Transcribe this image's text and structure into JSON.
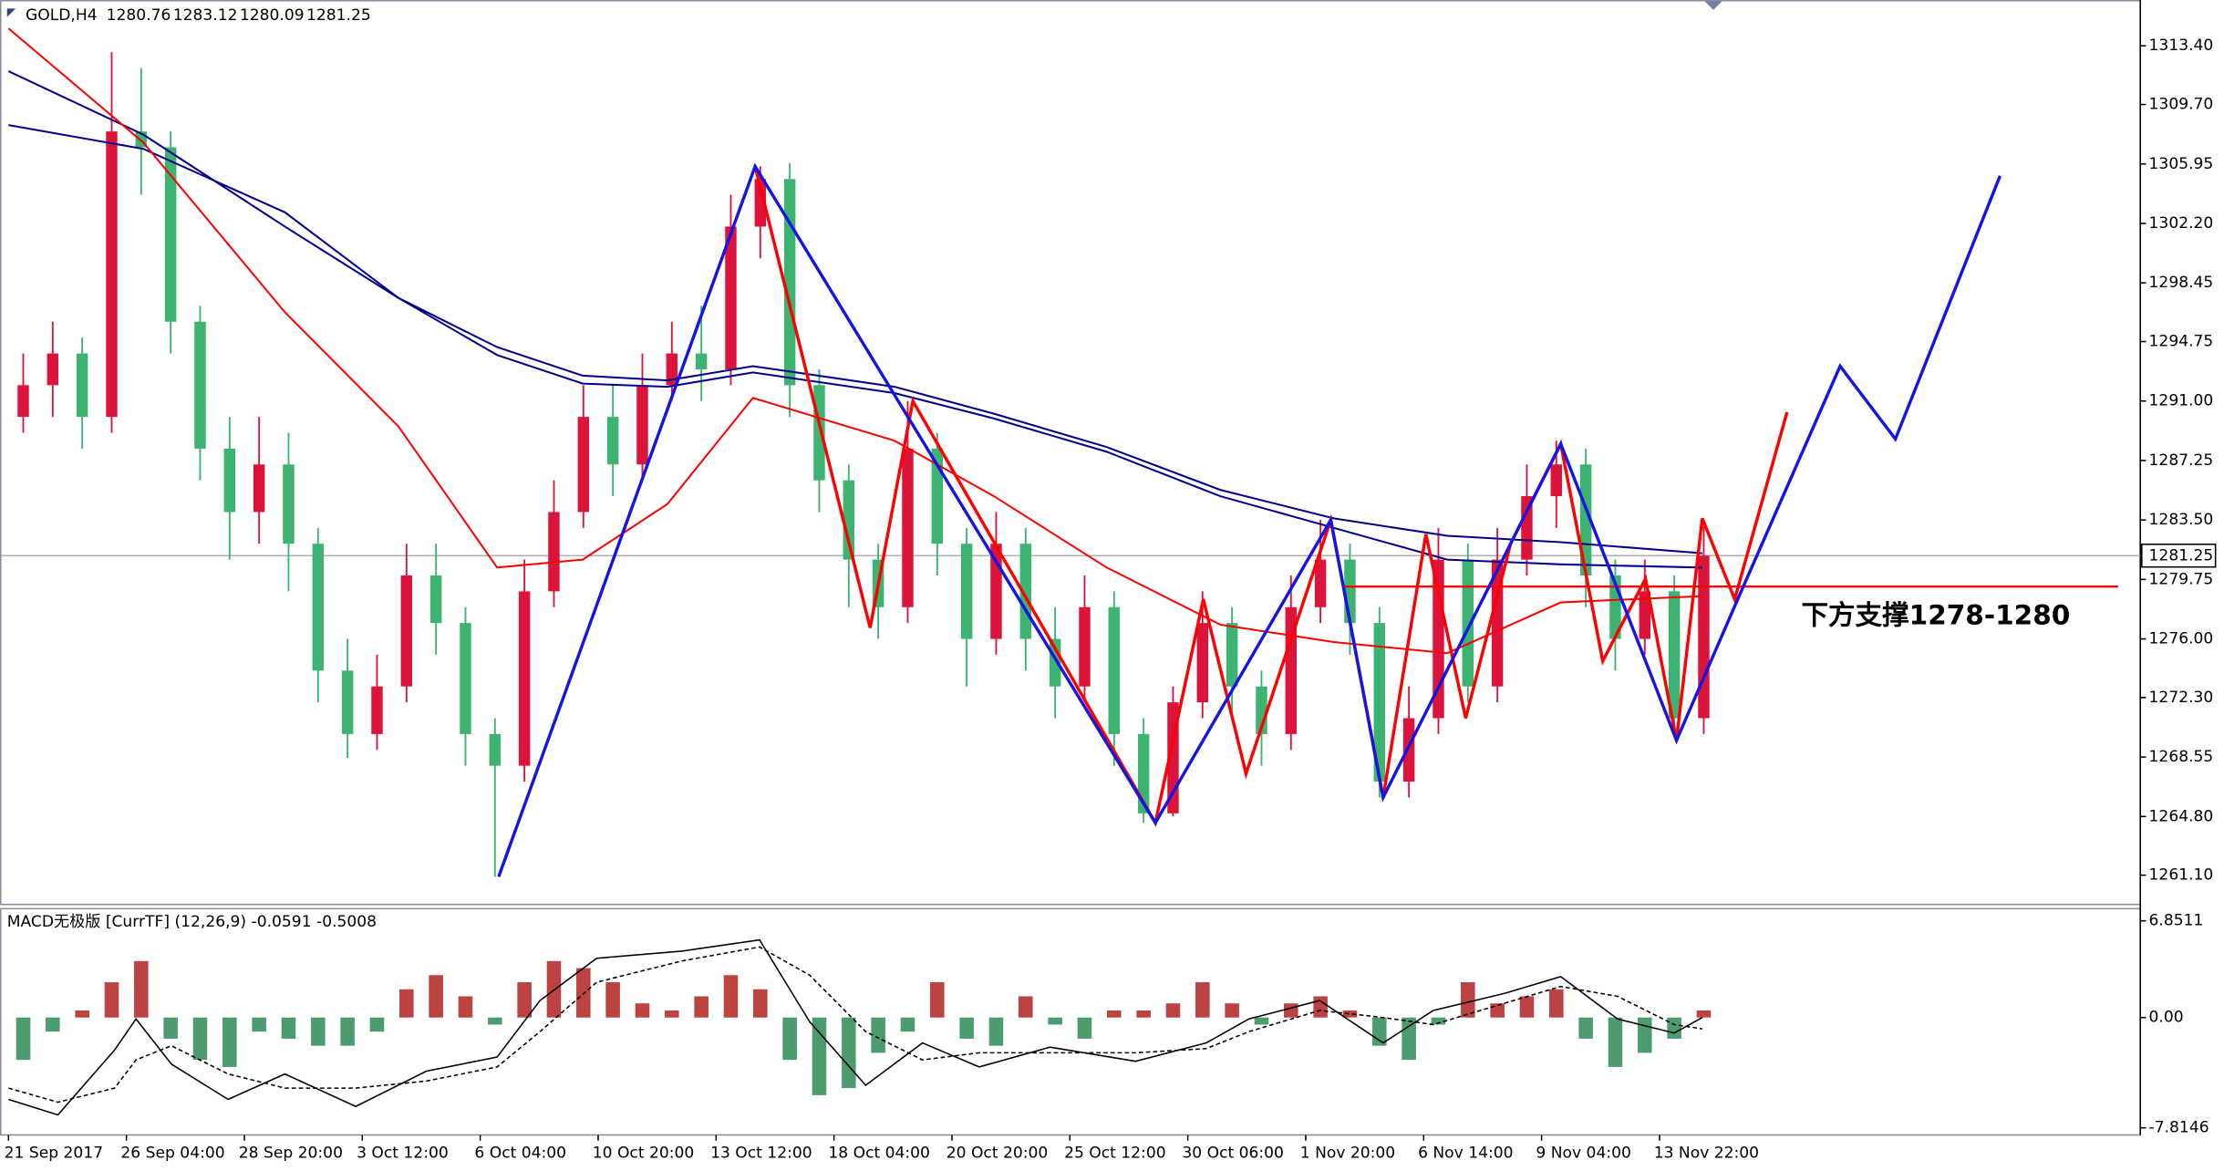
{
  "chart_data": [
    {
      "type": "candlestick",
      "title": "GOLD,H4",
      "ohlc": [
        1280.76,
        1283.12,
        1280.09,
        1281.25
      ],
      "up_color": "#dc143c",
      "down_color": "#3cb371",
      "x": [
        2,
        6,
        10,
        14,
        18,
        22,
        26,
        30,
        34,
        38,
        42,
        46,
        50,
        54,
        58,
        62,
        66,
        70,
        74,
        78,
        82,
        86,
        90,
        94,
        98,
        102,
        106,
        110,
        114,
        118,
        122,
        126,
        130,
        134,
        138,
        142,
        146,
        150,
        154,
        158,
        162,
        166,
        170,
        174,
        178,
        182,
        186,
        190,
        194,
        198,
        202,
        206,
        210,
        214,
        218,
        222,
        226,
        230
      ],
      "open": [
        1290,
        1292,
        1294,
        1290,
        1308,
        1307,
        1296,
        1288,
        1284,
        1287,
        1282,
        1274,
        1270,
        1273,
        1280,
        1277,
        1270,
        1268,
        1279,
        1284,
        1290,
        1287,
        1292,
        1294,
        1293,
        1302,
        1305,
        1292,
        1286,
        1281,
        1278,
        1288,
        1282,
        1276,
        1282,
        1276,
        1273,
        1278,
        1270,
        1265,
        1272,
        1277,
        1273,
        1270,
        1278,
        1281,
        1277,
        1267,
        1271,
        1281,
        1273,
        1281,
        1285,
        1287,
        1280,
        1276,
        1279,
        1271
      ],
      "high": [
        1294,
        1296,
        1295,
        1313,
        1312,
        1308,
        1297,
        1290,
        1290,
        1289,
        1283,
        1276,
        1275,
        1282,
        1282,
        1278,
        1271,
        1281,
        1286,
        1292,
        1292,
        1294,
        1296,
        1297,
        1304,
        1305.8,
        1306,
        1293,
        1287,
        1282,
        1291,
        1289,
        1283,
        1284,
        1283,
        1278,
        1280,
        1279,
        1271,
        1273,
        1279,
        1278,
        1274,
        1280,
        1283.5,
        1282,
        1278,
        1273,
        1283,
        1282,
        1283,
        1287,
        1288.5,
        1288,
        1281,
        1281,
        1280,
        1283.12
      ],
      "low": [
        1289,
        1290,
        1288,
        1289,
        1304,
        1294,
        1286,
        1281,
        1282,
        1279,
        1272,
        1268.5,
        1269,
        1272,
        1275,
        1268,
        1261,
        1267,
        1278,
        1283,
        1285,
        1286,
        1291,
        1291,
        1292,
        1300,
        1290,
        1284,
        1278,
        1276,
        1277,
        1280,
        1273,
        1275,
        1274,
        1271,
        1272,
        1268,
        1264.4,
        1264.8,
        1271,
        1271,
        1268,
        1269,
        1277,
        1275,
        1266,
        1266,
        1270,
        1272,
        1272,
        1280,
        1283,
        1278,
        1274,
        1275,
        1270,
        1270
      ],
      "close": [
        1292,
        1294,
        1290,
        1308,
        1307,
        1296,
        1288,
        1284,
        1287,
        1282,
        1274,
        1270,
        1273,
        1280,
        1277,
        1270,
        1268,
        1279,
        1284,
        1290,
        1287,
        1292,
        1294,
        1293,
        1302,
        1305,
        1292,
        1286,
        1281,
        1278,
        1288,
        1282,
        1276,
        1282,
        1276,
        1273,
        1278,
        1270,
        1265,
        1272,
        1277,
        1273,
        1270,
        1278,
        1281,
        1277,
        1267,
        1271,
        1281,
        1273,
        1281,
        1285,
        1287,
        1280,
        1276,
        1279,
        1271,
        1281.25
      ],
      "lines": [
        {
          "color": "#00008b",
          "width": 1.3,
          "x": [
            0,
            18.3,
            37.5,
            52.9,
            66.3,
            77.9,
            89.4,
            101,
            120.2,
            133.7,
            149,
            164.4,
            179.8,
            195.2,
            210.6,
            229.8
          ],
          "values": [
            1311.8,
            1307.8,
            1302,
            1297.5,
            1294.4,
            1292.6,
            1292.3,
            1293.2,
            1291.9,
            1290.2,
            1288.1,
            1285.4,
            1283.6,
            1282.5,
            1282.1,
            1281.4
          ]
        },
        {
          "color": "#00008b",
          "width": 1.3,
          "x": [
            0,
            18.3,
            37.5,
            52.9,
            66.3,
            77.9,
            89.4,
            101,
            120.2,
            133.7,
            149,
            164.4,
            179.8,
            195.2,
            210.6,
            229.8
          ],
          "values": [
            1308.4,
            1306.9,
            1302.9,
            1297.5,
            1293.9,
            1292.1,
            1291.9,
            1292.8,
            1291.5,
            1289.9,
            1287.8,
            1285,
            1283,
            1281,
            1280.7,
            1280.5
          ]
        },
        {
          "color": "#ff0000",
          "width": 1.3,
          "x": [
            0,
            18.3,
            37.5,
            52.9,
            66.3,
            77.9,
            89.4,
            101,
            120.2,
            133.7,
            149,
            164.4,
            179.8,
            195.2,
            210.6,
            229.8
          ],
          "values": [
            1314.5,
            1307.3,
            1296.6,
            1289.4,
            1280.5,
            1281,
            1284.5,
            1291.2,
            1288.5,
            1285,
            1280.5,
            1276.9,
            1275.8,
            1275.1,
            1278.3,
            1278.7
          ]
        },
        {
          "color": "#ff0000",
          "width": 2.2,
          "x": [
            101.3,
            116.9,
            122.7,
            155.6,
            162.1,
            167.9,
            179.4,
            186.5,
            192.3,
            197.7,
            203.8,
            210.6,
            216.3,
            222.1,
            226.3,
            229.8,
            234.2,
            241.3
          ],
          "values": [
            1305.8,
            1276.7,
            1291,
            1264.4,
            1278.5,
            1267.5,
            1283.5,
            1266,
            1282.6,
            1271,
            1282,
            1288.3,
            1274.6,
            1279.8,
            1269.6,
            1283.6,
            1278.5,
            1290.3
          ]
        },
        {
          "color": "#1414e6",
          "width": 2.2,
          "x": [
            66.5,
            101.3,
            155.6,
            179.4,
            186.5,
            210.6,
            226.3,
            234.8,
            248.5,
            256,
            270.2
          ],
          "values": [
            1261,
            1305.8,
            1264.4,
            1283.5,
            1266,
            1288.3,
            1269.6,
            1278.7,
            1293.2,
            1288.6,
            1305.2
          ]
        }
      ],
      "support": {
        "value": 1279.3,
        "x": [
          181.3,
          286.2
        ],
        "color": "#ff0000",
        "label": "下方支撑1278-1280",
        "label_color": "#1a2fa8"
      },
      "xlim": [
        -0.96,
        289.23
      ],
      "ylim": [
        1259.3,
        1316.2
      ],
      "yticks": [
        {
          "value": 1313.4,
          "label": "1313.40"
        },
        {
          "value": 1309.7,
          "label": "1309.70"
        },
        1305.95,
        {
          "value": 1302.2,
          "label": "1302.20"
        },
        1298.45,
        1294.75,
        {
          "value": 1291,
          "label": "1291.00"
        },
        1287.25,
        {
          "value": 1283.5,
          "label": "1283.50"
        },
        1279.75,
        {
          "value": 1276,
          "label": "1276.00"
        },
        {
          "value": 1272.3,
          "label": "1272.30"
        },
        1268.55,
        {
          "value": 1264.8,
          "label": "1264.80"
        },
        {
          "value": 1261.1,
          "label": "1261.10"
        }
      ],
      "xticks": [
        {
          "value": 0,
          "label": "21 Sep 2017"
        },
        {
          "value": 16,
          "label": "26 Sep 04:00"
        },
        {
          "value": 32,
          "label": "28 Sep 20:00"
        },
        {
          "value": 48,
          "label": "3 Oct 12:00"
        },
        {
          "value": 64,
          "label": "6 Oct 04:00"
        },
        {
          "value": 80,
          "label": "10 Oct 20:00"
        },
        {
          "value": 96,
          "label": "13 Oct 12:00"
        },
        {
          "value": 112,
          "label": "18 Oct 04:00"
        },
        {
          "value": 128,
          "label": "20 Oct 20:00"
        },
        {
          "value": 144,
          "label": "25 Oct 12:00"
        },
        {
          "value": 160,
          "label": "30 Oct 06:00"
        },
        {
          "value": 176,
          "label": "1 Nov 20:00"
        },
        {
          "value": 192,
          "label": "6 Nov 14:00"
        },
        {
          "value": 208,
          "label": "9 Nov 04:00"
        },
        {
          "value": 224,
          "label": "13 Nov 22:00"
        }
      ],
      "grid": false
    },
    {
      "type": "macd",
      "title": "MACD无极版 [CurrTF] (12,26,9) -0.0591 -0.5008",
      "up_color": "#b22222",
      "down_color": "#2e8b57",
      "x": [
        2,
        6,
        10,
        14,
        18,
        22,
        26,
        30,
        34,
        38,
        42,
        46,
        50,
        54,
        58,
        62,
        66,
        70,
        74,
        78,
        82,
        86,
        90,
        94,
        98,
        102,
        106,
        110,
        114,
        118,
        122,
        126,
        130,
        134,
        138,
        142,
        146,
        150,
        154,
        158,
        162,
        166,
        170,
        174,
        178,
        182,
        186,
        190,
        194,
        198,
        202,
        206,
        210,
        214,
        218,
        222,
        226,
        230
      ],
      "values": [
        -3,
        -1,
        0.5,
        2.5,
        4,
        -1.5,
        -3,
        -3.5,
        -1,
        -1.5,
        -2,
        -2,
        -1,
        2,
        3,
        1.5,
        -0.5,
        2.5,
        4,
        3.5,
        2.5,
        1,
        0.5,
        1.5,
        3,
        2,
        -3,
        -5.5,
        -5,
        -2.5,
        -1,
        2.5,
        -1.5,
        -2,
        1.5,
        -0.5,
        -1.5,
        0.5,
        0.5,
        1,
        2.5,
        1,
        -0.5,
        1,
        1.5,
        0.5,
        -2,
        -3,
        -0.5,
        2.5,
        1,
        1.5,
        2,
        -1.5,
        -3.5,
        -2.5,
        -1.5,
        0.5
      ],
      "lines": [
        {
          "color": "#000000",
          "dash": false,
          "x": [
            0,
            6.7,
            14.4,
            17.3,
            22.1,
            29.8,
            37.5,
            47.1,
            56.7,
            66.3,
            72.1,
            79.8,
            91.3,
            101.9,
            108.7,
            116.3,
            124,
            131.7,
            141.3,
            152.9,
            162.5,
            168.3,
            177.9,
            186.5,
            193.3,
            202.9,
            210.6,
            218.3,
            226,
            229.8
          ],
          "values": [
            -5.8,
            -6.9,
            -2.3,
            -0.1,
            -3.3,
            -5.8,
            -4,
            -6.3,
            -3.8,
            -2.8,
            1.2,
            4.2,
            4.7,
            5.5,
            -0.3,
            -4.8,
            -1.8,
            -3.5,
            -2.1,
            -3.1,
            -1.8,
            -0.1,
            1.2,
            -1.8,
            0.5,
            1.7,
            2.9,
            -0.1,
            -1.1,
            0
          ]
        },
        {
          "color": "#000000",
          "dash": true,
          "x": [
            0,
            6.7,
            14.4,
            17.3,
            22.1,
            29.8,
            37.5,
            47.1,
            56.7,
            66.3,
            72.1,
            79.8,
            91.3,
            101.9,
            108.7,
            116.3,
            124,
            131.7,
            141.3,
            152.9,
            162.5,
            168.3,
            177.9,
            186.5,
            193.3,
            202.9,
            210.6,
            218.3,
            226,
            229.8
          ],
          "values": [
            -5,
            -6,
            -5,
            -3,
            -2,
            -4,
            -5,
            -5,
            -4.5,
            -3.5,
            -1,
            2.5,
            4,
            5,
            3,
            -1,
            -3,
            -2.5,
            -2.5,
            -2.5,
            -2.2,
            -1,
            0.5,
            0,
            -0.5,
            1,
            2.2,
            1.5,
            -0.5,
            -0.8
          ]
        }
      ],
      "xlim": [
        -0.96,
        289.23
      ],
      "ylim": [
        -8.32,
        7.66
      ],
      "yticks": [
        6.8511,
        {
          "value": 0,
          "label": "0.00"
        },
        -7.8146
      ]
    }
  ]
}
